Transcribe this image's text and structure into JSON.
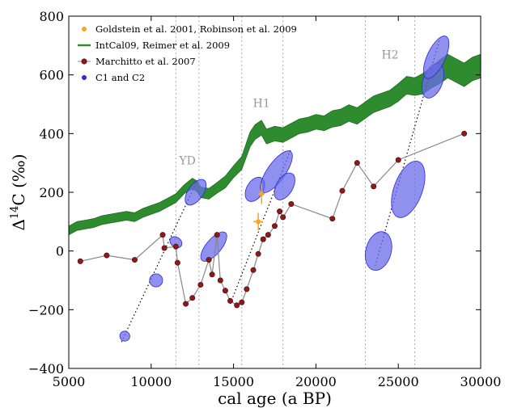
{
  "chart_data": {
    "type": "line",
    "xlabel": "cal age (a BP)",
    "ylabel_main": "Δ",
    "ylabel_sup": "14",
    "ylabel_rest": "C (‰)",
    "xlim": [
      5000,
      30000
    ],
    "ylim": [
      -400,
      800
    ],
    "xticks": [
      {
        "v": 5000,
        "label": "5000"
      },
      {
        "v": 10000,
        "label": "10000"
      },
      {
        "v": 15000,
        "label": "15000"
      },
      {
        "v": 20000,
        "label": "20000"
      },
      {
        "v": 25000,
        "label": "25000"
      },
      {
        "v": 30000,
        "label": "30000"
      }
    ],
    "yticks": [
      {
        "v": -400,
        "label": "−400"
      },
      {
        "v": -200,
        "label": "−200"
      },
      {
        "v": 0,
        "label": "0"
      },
      {
        "v": 200,
        "label": "200"
      },
      {
        "v": 400,
        "label": "400"
      },
      {
        "v": 600,
        "label": "600"
      },
      {
        "v": 800,
        "label": "800"
      }
    ],
    "event_lines": [
      11500,
      12900,
      15500,
      18000,
      23000,
      26000
    ],
    "event_labels": [
      {
        "text": "YD",
        "x": 12200,
        "y": 295
      },
      {
        "text": "H1",
        "x": 16700,
        "y": 490
      },
      {
        "text": "H2",
        "x": 24500,
        "y": 655
      }
    ],
    "legend_position": "upper-left",
    "colors": {
      "goldstein": "#f5a623",
      "intcal": "#2e8b2e",
      "marchitto_fill": "#8b1a1a",
      "marchitto_line": "#888888",
      "c1c2": "#2b2bd9",
      "ellipse_fill": "#6b6be8",
      "trend": "#000000",
      "event_line": "#aaaaaa"
    },
    "series": [
      {
        "name": "Goldstein et al. 2001, Robinson et al. 2009",
        "kind": "points_with_error",
        "points": [
          {
            "x": 16500,
            "y": 100,
            "xerr": 300,
            "yerr": 30
          },
          {
            "x": 16700,
            "y": 195,
            "xerr": 200,
            "yerr": 35
          }
        ]
      },
      {
        "name": "IntCal09, Reimer et al. 2009",
        "kind": "band",
        "x": [
          5000,
          5500,
          6000,
          6500,
          7000,
          7500,
          8000,
          8500,
          9000,
          9500,
          10000,
          10500,
          11000,
          11500,
          12000,
          12500,
          12800,
          13000,
          13500,
          14000,
          14500,
          15000,
          15500,
          16000,
          16300,
          16700,
          17000,
          17500,
          18000,
          18500,
          19000,
          19500,
          20000,
          20500,
          21000,
          21500,
          22000,
          22500,
          23000,
          23500,
          24000,
          24500,
          25000,
          25500,
          26000,
          26500,
          27000,
          27500,
          28000,
          28500,
          29000,
          29500,
          30000
        ],
        "mid": [
          70,
          85,
          90,
          95,
          105,
          110,
          115,
          120,
          115,
          130,
          140,
          150,
          165,
          180,
          210,
          230,
          220,
          200,
          195,
          215,
          235,
          270,
          300,
          380,
          405,
          420,
          390,
          400,
          395,
          410,
          425,
          430,
          440,
          435,
          450,
          455,
          470,
          460,
          480,
          500,
          510,
          520,
          540,
          565,
          560,
          570,
          590,
          610,
          630,
          615,
          600,
          620,
          630
        ],
        "half_width": [
          15,
          15,
          15,
          15,
          15,
          15,
          15,
          15,
          15,
          15,
          15,
          15,
          15,
          15,
          15,
          18,
          18,
          18,
          18,
          18,
          20,
          20,
          22,
          25,
          25,
          25,
          25,
          25,
          25,
          25,
          25,
          25,
          25,
          25,
          28,
          28,
          28,
          28,
          28,
          28,
          28,
          28,
          30,
          30,
          30,
          35,
          35,
          40,
          40,
          40,
          40,
          40,
          40
        ]
      },
      {
        "name": "Marchitto et al. 2007",
        "kind": "line_markers",
        "x": [
          5700,
          7300,
          9000,
          10700,
          10800,
          11500,
          11600,
          12100,
          12500,
          13000,
          13500,
          13700,
          14000,
          14200,
          14500,
          14800,
          15200,
          15500,
          15800,
          16200,
          16500,
          16800,
          17100,
          17500,
          17800,
          18000,
          18500,
          21000,
          21600,
          22500,
          23500,
          25000,
          29000
        ],
        "y": [
          -35,
          -15,
          -30,
          55,
          10,
          15,
          -40,
          -180,
          -160,
          -115,
          -30,
          -80,
          55,
          -100,
          -135,
          -170,
          -185,
          -175,
          -130,
          -65,
          -10,
          40,
          55,
          85,
          135,
          115,
          160,
          110,
          205,
          300,
          220,
          310,
          400
        ]
      },
      {
        "name": "C1 and C2",
        "kind": "ellipses",
        "items": [
          {
            "cx": 8400,
            "cy": -290,
            "rx": 300,
            "ry": 18,
            "deg": -40
          },
          {
            "cx": 10300,
            "cy": -100,
            "rx": 400,
            "ry": 28,
            "deg": -50
          },
          {
            "cx": 11500,
            "cy": 30,
            "rx": 300,
            "ry": 28,
            "deg": -55
          },
          {
            "cx": 12700,
            "cy": 200,
            "rx": 900,
            "ry": 35,
            "deg": -55
          },
          {
            "cx": 13800,
            "cy": 15,
            "rx": 1100,
            "ry": 35,
            "deg": -50
          },
          {
            "cx": 16300,
            "cy": 210,
            "rx": 800,
            "ry": 40,
            "deg": -60
          },
          {
            "cx": 17600,
            "cy": 270,
            "rx": 1500,
            "ry": 45,
            "deg": -55
          },
          {
            "cx": 18100,
            "cy": 220,
            "rx": 900,
            "ry": 40,
            "deg": -60
          },
          {
            "cx": 23800,
            "cy": 0,
            "rx": 1200,
            "ry": 70,
            "deg": -75
          },
          {
            "cx": 25600,
            "cy": 210,
            "rx": 1800,
            "ry": 80,
            "deg": -70
          },
          {
            "cx": 27100,
            "cy": 580,
            "rx": 1100,
            "ry": 50,
            "deg": -70
          },
          {
            "cx": 27300,
            "cy": 660,
            "rx": 1400,
            "ry": 45,
            "deg": -65
          }
        ]
      }
    ],
    "trend_segments": [
      [
        [
          8200,
          -310
        ],
        [
          12800,
          240
        ]
      ],
      [
        [
          14800,
          -180
        ],
        [
          18500,
          350
        ]
      ],
      [
        [
          23600,
          -50
        ],
        [
          27500,
          720
        ]
      ]
    ]
  }
}
